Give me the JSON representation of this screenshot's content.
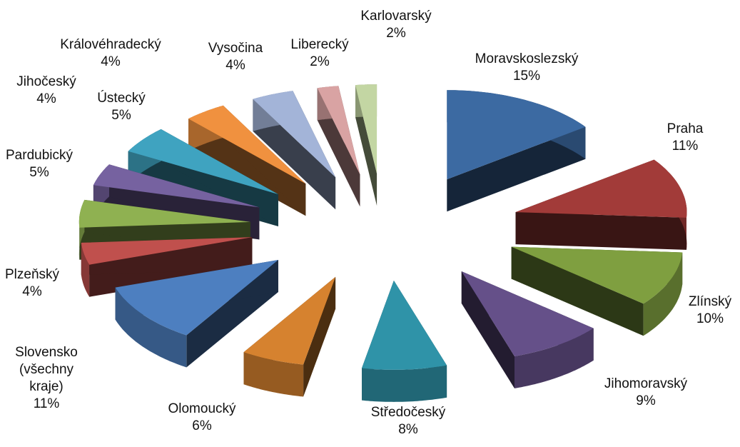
{
  "chart_data": {
    "type": "pie",
    "categories": [
      "Moravskoslezský",
      "Praha",
      "Zlínský",
      "Jihomoravský",
      "Středočeský",
      "Olomoucký",
      "Slovensko (všechny kraje)",
      "Plzeňský",
      "Pardubický",
      "Jihočeský",
      "Ústecký",
      "Královéhradecký",
      "Vysočina",
      "Liberecký",
      "Karlovarský"
    ],
    "values": [
      15,
      11,
      10,
      9,
      8,
      6,
      11,
      4,
      5,
      4,
      5,
      4,
      4,
      2,
      2
    ],
    "value_labels": [
      "15%",
      "11%",
      "10%",
      "9%",
      "8%",
      "6%",
      "11%",
      "4%",
      "5%",
      "4%",
      "5%",
      "4%",
      "4%",
      "2%",
      "2%"
    ],
    "colors": [
      "#3c6aa2",
      "#a23b39",
      "#7f9f40",
      "#655089",
      "#2f93a8",
      "#d6822f",
      "#4d7fc0",
      "#c0504d",
      "#8fb151",
      "#7662a0",
      "#3fa3c0",
      "#f0913f",
      "#a3b4d8",
      "#d9a3a3",
      "#c3d6a3"
    ]
  }
}
